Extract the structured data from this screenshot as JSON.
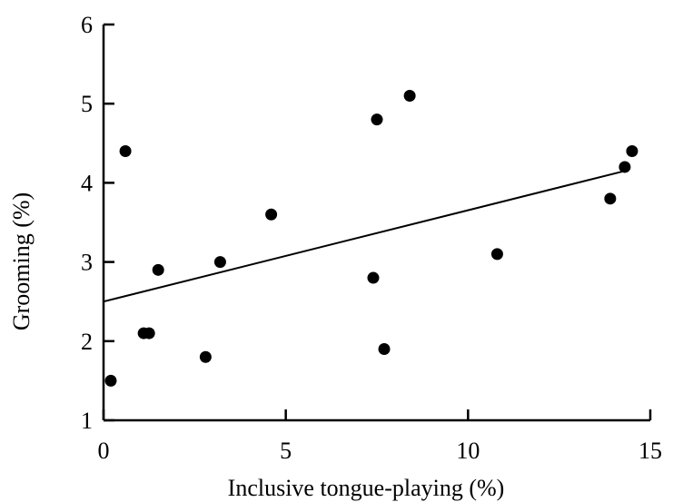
{
  "chart_data": {
    "type": "scatter",
    "title": "",
    "xlabel": "Inclusive tongue-playing (%)",
    "ylabel": "Grooming (%)",
    "xlim": [
      0,
      15
    ],
    "ylim": [
      1,
      6
    ],
    "xticks": [
      0,
      5,
      10,
      15
    ],
    "yticks": [
      1,
      2,
      3,
      4,
      5,
      6
    ],
    "xtick_labels": [
      "0",
      "5",
      "10",
      "15"
    ],
    "ytick_labels": [
      "1",
      "2",
      "3",
      "4",
      "5",
      "6"
    ],
    "grid": false,
    "legend": "none",
    "colors": {
      "points": "#000000",
      "line": "#000000",
      "axes": "#000000"
    },
    "series": [
      {
        "points": [
          {
            "x": 0.2,
            "y": 1.5
          },
          {
            "x": 0.6,
            "y": 4.4
          },
          {
            "x": 1.1,
            "y": 2.1
          },
          {
            "x": 1.25,
            "y": 2.1
          },
          {
            "x": 1.5,
            "y": 2.9
          },
          {
            "x": 2.8,
            "y": 1.8
          },
          {
            "x": 3.2,
            "y": 3.0
          },
          {
            "x": 4.6,
            "y": 3.6
          },
          {
            "x": 7.4,
            "y": 2.8
          },
          {
            "x": 7.5,
            "y": 4.8
          },
          {
            "x": 7.7,
            "y": 1.9
          },
          {
            "x": 8.4,
            "y": 5.1
          },
          {
            "x": 10.8,
            "y": 3.1
          },
          {
            "x": 13.9,
            "y": 3.8
          },
          {
            "x": 14.3,
            "y": 4.2
          },
          {
            "x": 14.5,
            "y": 4.4
          }
        ]
      }
    ],
    "trendline": {
      "x": [
        0,
        14.3
      ],
      "y": [
        2.5,
        4.15
      ]
    }
  }
}
